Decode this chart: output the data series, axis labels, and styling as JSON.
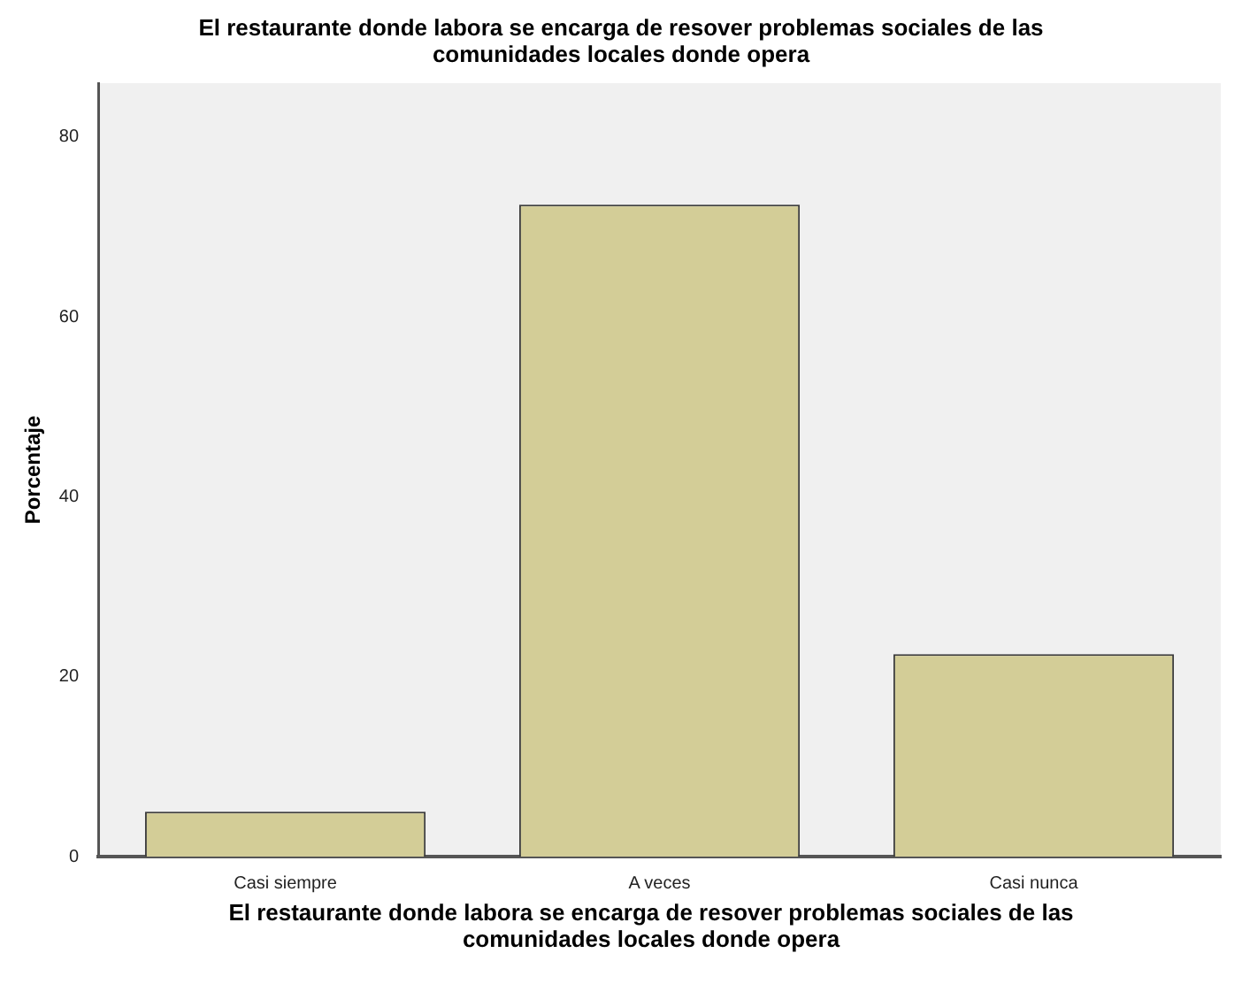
{
  "chart_data": {
    "type": "bar",
    "title": "El restaurante donde labora se encarga de resover problemas sociales de las comunidades locales donde opera",
    "xlabel": "El restaurante donde labora se encarga de resover problemas sociales de las comunidades locales donde opera",
    "ylabel": "Porcentaje",
    "categories": [
      "Casi siempre",
      "A veces",
      "Casi nunca"
    ],
    "values": [
      5,
      72.5,
      22.5
    ],
    "color": "#d3cd97",
    "ylim": [
      0,
      86
    ],
    "yticks": [
      0,
      20,
      40,
      60,
      80
    ],
    "grid": false,
    "legend": false
  }
}
